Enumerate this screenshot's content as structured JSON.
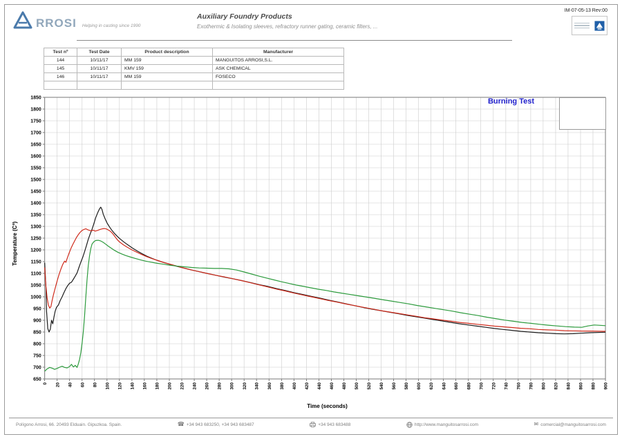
{
  "page": {
    "doc_ref": "IM-07-05-13 Rev:00"
  },
  "header": {
    "logo_text": "RROSI",
    "tagline": "Helping in casting since 1990",
    "title": "Auxiliary Foundry Products",
    "subtitle": "Exothermic & Isolating sleeves, refractory runner gating, ceramic filters, ..."
  },
  "table": {
    "headers": [
      "Test nº",
      "Test Date",
      "Product description",
      "Manufacturer"
    ],
    "rows": [
      [
        "144",
        "10/11/17",
        "MM 159",
        "MANGUITOS ARROSI,S.L."
      ],
      [
        "145",
        "10/11/17",
        "KMV 159",
        "ASK CHEMICAL"
      ],
      [
        "146",
        "10/11/17",
        "MM 159",
        "FOSECO"
      ],
      [
        "",
        "",
        "",
        ""
      ]
    ]
  },
  "chart_data": {
    "type": "line",
    "title": "Burning Test",
    "title_color": "#2020cc",
    "xlabel": "Time (seconds)",
    "ylabel": "Temperature (Cª)",
    "xlim": [
      0,
      900
    ],
    "ylim": [
      650,
      1850
    ],
    "x_tick_step": 20,
    "y_tick_step": 50,
    "grid": true,
    "legend_position": "top-right-empty-box",
    "series": [
      {
        "name": "black",
        "color": "#1a1a1a",
        "points": [
          [
            0,
            1145
          ],
          [
            2,
            1040
          ],
          [
            3,
            940
          ],
          [
            5,
            865
          ],
          [
            7,
            850
          ],
          [
            9,
            862
          ],
          [
            11,
            900
          ],
          [
            13,
            885
          ],
          [
            15,
            915
          ],
          [
            17,
            940
          ],
          [
            19,
            955
          ],
          [
            22,
            965
          ],
          [
            25,
            985
          ],
          [
            28,
            1000
          ],
          [
            31,
            1018
          ],
          [
            34,
            1035
          ],
          [
            37,
            1048
          ],
          [
            40,
            1058
          ],
          [
            43,
            1062
          ],
          [
            46,
            1075
          ],
          [
            49,
            1088
          ],
          [
            52,
            1102
          ],
          [
            55,
            1125
          ],
          [
            58,
            1148
          ],
          [
            61,
            1168
          ],
          [
            64,
            1192
          ],
          [
            67,
            1218
          ],
          [
            70,
            1245
          ],
          [
            73,
            1268
          ],
          [
            76,
            1288
          ],
          [
            79,
            1312
          ],
          [
            82,
            1338
          ],
          [
            85,
            1358
          ],
          [
            88,
            1375
          ],
          [
            90,
            1382
          ],
          [
            92,
            1372
          ],
          [
            94,
            1352
          ],
          [
            97,
            1332
          ],
          [
            100,
            1315
          ],
          [
            104,
            1298
          ],
          [
            108,
            1283
          ],
          [
            112,
            1270
          ],
          [
            116,
            1259
          ],
          [
            120,
            1249
          ],
          [
            126,
            1236
          ],
          [
            132,
            1224
          ],
          [
            140,
            1209
          ],
          [
            148,
            1196
          ],
          [
            156,
            1184
          ],
          [
            164,
            1173
          ],
          [
            172,
            1164
          ],
          [
            180,
            1156
          ],
          [
            190,
            1147
          ],
          [
            200,
            1139
          ],
          [
            212,
            1130
          ],
          [
            224,
            1122
          ],
          [
            236,
            1114
          ],
          [
            248,
            1107
          ],
          [
            260,
            1100
          ],
          [
            274,
            1092
          ],
          [
            288,
            1084
          ],
          [
            302,
            1077
          ],
          [
            316,
            1069
          ],
          [
            330,
            1061
          ],
          [
            344,
            1052
          ],
          [
            358,
            1044
          ],
          [
            372,
            1035
          ],
          [
            386,
            1027
          ],
          [
            400,
            1018
          ],
          [
            414,
            1010
          ],
          [
            428,
            1002
          ],
          [
            442,
            994
          ],
          [
            456,
            986
          ],
          [
            470,
            978
          ],
          [
            484,
            970
          ],
          [
            498,
            962
          ],
          [
            512,
            954
          ],
          [
            526,
            947
          ],
          [
            540,
            941
          ],
          [
            554,
            934
          ],
          [
            568,
            928
          ],
          [
            582,
            921
          ],
          [
            596,
            915
          ],
          [
            610,
            909
          ],
          [
            624,
            903
          ],
          [
            638,
            897
          ],
          [
            652,
            891
          ],
          [
            666,
            885
          ],
          [
            680,
            880
          ],
          [
            694,
            875
          ],
          [
            708,
            870
          ],
          [
            722,
            865
          ],
          [
            736,
            861
          ],
          [
            750,
            857
          ],
          [
            764,
            853
          ],
          [
            778,
            850
          ],
          [
            792,
            847
          ],
          [
            806,
            845
          ],
          [
            820,
            843
          ],
          [
            834,
            842
          ],
          [
            848,
            843
          ],
          [
            862,
            845
          ],
          [
            876,
            847
          ],
          [
            900,
            849
          ]
        ]
      },
      {
        "name": "red",
        "color": "#cf2a1b",
        "points": [
          [
            0,
            1125
          ],
          [
            2,
            1045
          ],
          [
            4,
            995
          ],
          [
            6,
            965
          ],
          [
            8,
            952
          ],
          [
            10,
            958
          ],
          [
            12,
            985
          ],
          [
            14,
            1008
          ],
          [
            16,
            1028
          ],
          [
            18,
            1048
          ],
          [
            20,
            1068
          ],
          [
            23,
            1095
          ],
          [
            26,
            1118
          ],
          [
            29,
            1138
          ],
          [
            32,
            1152
          ],
          [
            34,
            1147
          ],
          [
            36,
            1163
          ],
          [
            39,
            1185
          ],
          [
            42,
            1205
          ],
          [
            45,
            1222
          ],
          [
            48,
            1238
          ],
          [
            51,
            1253
          ],
          [
            54,
            1265
          ],
          [
            57,
            1275
          ],
          [
            60,
            1283
          ],
          [
            63,
            1287
          ],
          [
            66,
            1290
          ],
          [
            69,
            1286
          ],
          [
            72,
            1283
          ],
          [
            75,
            1281
          ],
          [
            78,
            1284
          ],
          [
            81,
            1280
          ],
          [
            84,
            1282
          ],
          [
            87,
            1285
          ],
          [
            90,
            1288
          ],
          [
            93,
            1290
          ],
          [
            96,
            1291
          ],
          [
            99,
            1289
          ],
          [
            102,
            1285
          ],
          [
            105,
            1280
          ],
          [
            108,
            1273
          ],
          [
            111,
            1263
          ],
          [
            114,
            1252
          ],
          [
            117,
            1242
          ],
          [
            120,
            1234
          ],
          [
            126,
            1222
          ],
          [
            132,
            1212
          ],
          [
            140,
            1200
          ],
          [
            148,
            1190
          ],
          [
            156,
            1180
          ],
          [
            164,
            1171
          ],
          [
            172,
            1163
          ],
          [
            180,
            1156
          ],
          [
            190,
            1147
          ],
          [
            200,
            1140
          ],
          [
            212,
            1131
          ],
          [
            224,
            1122
          ],
          [
            236,
            1114
          ],
          [
            248,
            1107
          ],
          [
            260,
            1100
          ],
          [
            274,
            1092
          ],
          [
            288,
            1085
          ],
          [
            302,
            1077
          ],
          [
            316,
            1069
          ],
          [
            330,
            1060
          ],
          [
            344,
            1051
          ],
          [
            358,
            1042
          ],
          [
            372,
            1033
          ],
          [
            386,
            1025
          ],
          [
            400,
            1016
          ],
          [
            414,
            1008
          ],
          [
            428,
            1000
          ],
          [
            442,
            992
          ],
          [
            456,
            984
          ],
          [
            470,
            977
          ],
          [
            484,
            969
          ],
          [
            498,
            962
          ],
          [
            512,
            955
          ],
          [
            526,
            948
          ],
          [
            540,
            941
          ],
          [
            554,
            935
          ],
          [
            568,
            929
          ],
          [
            582,
            923
          ],
          [
            596,
            917
          ],
          [
            610,
            911
          ],
          [
            624,
            906
          ],
          [
            638,
            901
          ],
          [
            652,
            896
          ],
          [
            666,
            891
          ],
          [
            680,
            887
          ],
          [
            694,
            883
          ],
          [
            708,
            879
          ],
          [
            722,
            875
          ],
          [
            736,
            872
          ],
          [
            750,
            869
          ],
          [
            764,
            866
          ],
          [
            778,
            864
          ],
          [
            792,
            861
          ],
          [
            806,
            859
          ],
          [
            820,
            858
          ],
          [
            834,
            856
          ],
          [
            848,
            855
          ],
          [
            862,
            854
          ],
          [
            876,
            854
          ],
          [
            900,
            853
          ]
        ]
      },
      {
        "name": "green",
        "color": "#2c9a3c",
        "points": [
          [
            0,
            683
          ],
          [
            4,
            693
          ],
          [
            8,
            699
          ],
          [
            12,
            696
          ],
          [
            16,
            691
          ],
          [
            20,
            695
          ],
          [
            24,
            700
          ],
          [
            28,
            704
          ],
          [
            32,
            699
          ],
          [
            36,
            697
          ],
          [
            40,
            703
          ],
          [
            43,
            712
          ],
          [
            46,
            701
          ],
          [
            49,
            708
          ],
          [
            52,
            699
          ],
          [
            54,
            714
          ],
          [
            56,
            733
          ],
          [
            58,
            762
          ],
          [
            60,
            803
          ],
          [
            62,
            852
          ],
          [
            64,
            918
          ],
          [
            66,
            998
          ],
          [
            68,
            1072
          ],
          [
            70,
            1133
          ],
          [
            72,
            1176
          ],
          [
            74,
            1206
          ],
          [
            76,
            1225
          ],
          [
            79,
            1235
          ],
          [
            82,
            1240
          ],
          [
            86,
            1241
          ],
          [
            90,
            1238
          ],
          [
            94,
            1232
          ],
          [
            98,
            1224
          ],
          [
            102,
            1216
          ],
          [
            107,
            1207
          ],
          [
            112,
            1198
          ],
          [
            118,
            1189
          ],
          [
            124,
            1182
          ],
          [
            130,
            1176
          ],
          [
            138,
            1169
          ],
          [
            146,
            1163
          ],
          [
            154,
            1157
          ],
          [
            162,
            1152
          ],
          [
            170,
            1148
          ],
          [
            180,
            1143
          ],
          [
            190,
            1139
          ],
          [
            200,
            1135
          ],
          [
            212,
            1131
          ],
          [
            224,
            1128
          ],
          [
            236,
            1125
          ],
          [
            248,
            1123
          ],
          [
            260,
            1122
          ],
          [
            272,
            1121
          ],
          [
            284,
            1121
          ],
          [
            296,
            1119
          ],
          [
            308,
            1114
          ],
          [
            320,
            1106
          ],
          [
            332,
            1097
          ],
          [
            344,
            1088
          ],
          [
            356,
            1080
          ],
          [
            368,
            1072
          ],
          [
            380,
            1064
          ],
          [
            392,
            1057
          ],
          [
            404,
            1050
          ],
          [
            416,
            1044
          ],
          [
            428,
            1038
          ],
          [
            440,
            1032
          ],
          [
            452,
            1027
          ],
          [
            464,
            1021
          ],
          [
            476,
            1016
          ],
          [
            488,
            1011
          ],
          [
            500,
            1006
          ],
          [
            514,
            1000
          ],
          [
            528,
            994
          ],
          [
            542,
            988
          ],
          [
            556,
            982
          ],
          [
            570,
            976
          ],
          [
            584,
            970
          ],
          [
            598,
            963
          ],
          [
            612,
            957
          ],
          [
            626,
            951
          ],
          [
            640,
            945
          ],
          [
            654,
            939
          ],
          [
            668,
            932
          ],
          [
            682,
            926
          ],
          [
            696,
            920
          ],
          [
            710,
            913
          ],
          [
            724,
            907
          ],
          [
            738,
            901
          ],
          [
            752,
            896
          ],
          [
            766,
            891
          ],
          [
            780,
            887
          ],
          [
            794,
            883
          ],
          [
            808,
            879
          ],
          [
            822,
            876
          ],
          [
            836,
            873
          ],
          [
            850,
            871
          ],
          [
            862,
            870
          ],
          [
            872,
            876
          ],
          [
            882,
            880
          ],
          [
            900,
            877
          ]
        ]
      }
    ]
  },
  "footer": {
    "address": "Polígono Arrosi, 66.   20493 Elduain. Gipuzkoa. Spain.",
    "phone": "+34 943 683250, +34 943 683487",
    "fax": "+34 943 683488",
    "website": "http://www.manguitosarrosi.com",
    "email": "comercial@manguitosarrosi.com"
  }
}
